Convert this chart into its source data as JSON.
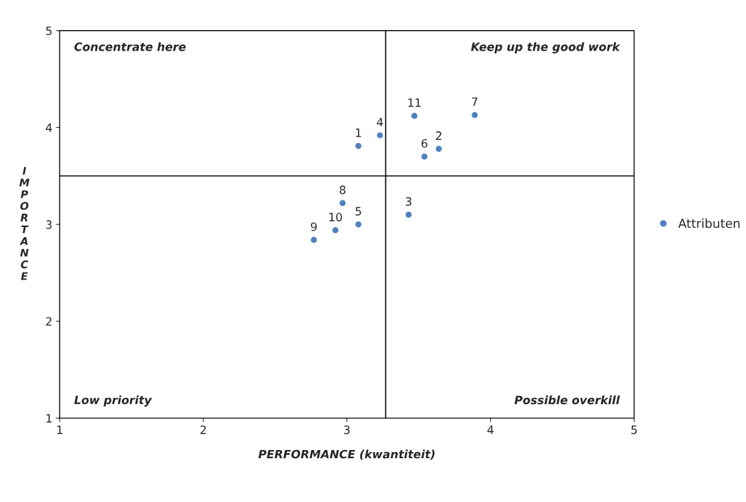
{
  "chart_data": {
    "type": "scatter",
    "xlabel": "PERFORMANCE (kwantiteit)",
    "ylabel": "IMPORTANCE",
    "x": [
      3.08,
      3.64,
      3.43,
      3.23,
      3.08,
      3.54,
      3.89,
      2.97,
      2.77,
      2.92,
      3.47
    ],
    "series": [
      {
        "name": "Attributen",
        "color": "#4f81bd",
        "values": [
          3.81,
          3.78,
          3.1,
          3.92,
          3.0,
          3.7,
          4.13,
          3.22,
          2.84,
          2.94,
          4.12
        ]
      }
    ],
    "value_labels": [
      "1",
      "2",
      "3",
      "4",
      "5",
      "6",
      "7",
      "8",
      "9",
      "10",
      "11"
    ],
    "xlim": [
      1,
      5
    ],
    "ylim": [
      1,
      5
    ],
    "xticks": [
      1,
      2,
      3,
      4,
      5
    ],
    "yticks": [
      1,
      2,
      3,
      4,
      5
    ],
    "ref_lines": [
      {
        "axis": "x",
        "value": 3.27,
        "color": "#000000"
      },
      {
        "axis": "y",
        "value": 3.5,
        "color": "#000000"
      }
    ],
    "annotations": [
      "Concentrate here",
      "Keep up the good work",
      "Low priority",
      "Possible overkill"
    ],
    "grid": false,
    "legend": "right",
    "marker": "circle"
  }
}
